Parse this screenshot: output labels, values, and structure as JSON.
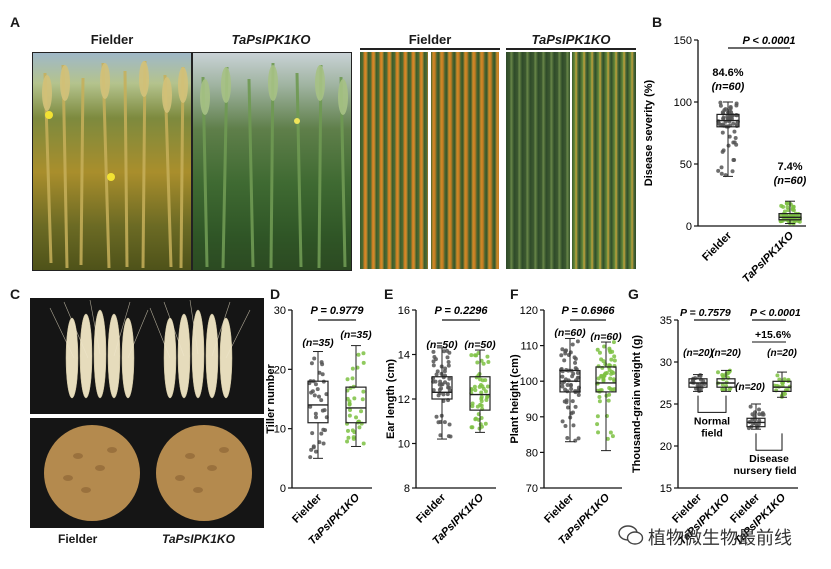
{
  "panel_letters": [
    "A",
    "B",
    "C",
    "D",
    "E",
    "F",
    "G"
  ],
  "panel_a": {
    "headers": [
      "Fielder",
      "TaPsIPK1KO",
      "Fielder",
      "TaPsIPK1KO"
    ]
  },
  "panel_c": {
    "labels": [
      "Fielder",
      "TaPsIPK1KO"
    ]
  },
  "watermark": "植物微生物最前线",
  "colors": {
    "fielder": "#555555",
    "ko": "#7dc142",
    "box": "#333333"
  },
  "chart_data": [
    {
      "id": "B",
      "type": "box",
      "ylabel": "Disease severity (%)",
      "ylim": [
        0,
        150
      ],
      "yticks": [
        0,
        50,
        100,
        150
      ],
      "categories": [
        "Fielder",
        "TaPsIPK1KO"
      ],
      "pvalue": "P < 0.0001",
      "annotations": [
        {
          "category": "Fielder",
          "text": "84.6%",
          "n": "(n=60)"
        },
        {
          "category": "TaPsIPK1KO",
          "text": "7.4%",
          "n": "(n=60)"
        }
      ],
      "boxes": [
        {
          "min": 40,
          "q1": 80,
          "median": 85,
          "q3": 90,
          "max": 100
        },
        {
          "min": 2,
          "q1": 5,
          "median": 7,
          "q3": 10,
          "max": 20
        }
      ]
    },
    {
      "id": "D",
      "type": "box",
      "ylabel": "Tiller number",
      "ylim": [
        0,
        30
      ],
      "yticks": [
        0,
        10,
        20,
        30
      ],
      "categories": [
        "Fielder",
        "TaPsIPK1KO"
      ],
      "pvalue": "P = 0.9779",
      "n_labels": [
        "(n=35)",
        "(n=35)"
      ],
      "boxes": [
        {
          "min": 5,
          "q1": 11,
          "median": 14,
          "q3": 18,
          "max": 23
        },
        {
          "min": 7,
          "q1": 11,
          "median": 13.5,
          "q3": 17,
          "max": 24
        }
      ]
    },
    {
      "id": "E",
      "type": "box",
      "ylabel": "Ear length (cm)",
      "ylim": [
        8,
        16
      ],
      "yticks": [
        8,
        10,
        12,
        14,
        16
      ],
      "categories": [
        "Fielder",
        "TaPsIPK1KO"
      ],
      "pvalue": "P = 0.2296",
      "n_labels": [
        "(n=50)",
        "(n=50)"
      ],
      "boxes": [
        {
          "min": 10.2,
          "q1": 12,
          "median": 12.3,
          "q3": 13,
          "max": 14.3
        },
        {
          "min": 10.5,
          "q1": 11.5,
          "median": 12.2,
          "q3": 13,
          "max": 14.2
        }
      ]
    },
    {
      "id": "F",
      "type": "box",
      "ylabel": "Plant height (cm)",
      "ylim": [
        70,
        120
      ],
      "yticks": [
        70,
        80,
        90,
        100,
        110,
        120
      ],
      "categories": [
        "Fielder",
        "TaPsIPK1KO"
      ],
      "pvalue": "P = 0.6966",
      "n_labels": [
        "(n=60)",
        "(n=60)"
      ],
      "boxes": [
        {
          "min": 83,
          "q1": 97,
          "median": 100,
          "q3": 103,
          "max": 112
        },
        {
          "min": 80.5,
          "q1": 97,
          "median": 99.5,
          "q3": 104,
          "max": 111
        }
      ]
    },
    {
      "id": "G",
      "type": "box",
      "ylabel": "Thousand-grain weight (g)",
      "ylim": [
        15,
        35
      ],
      "yticks": [
        15,
        20,
        25,
        30,
        35
      ],
      "categories": [
        "Fielder",
        "TaPsIPK1KO",
        "Fielder",
        "TaPsIPK1KO"
      ],
      "pvalues": [
        "P = 0.7579",
        "P < 0.0001"
      ],
      "pct_change": "+15.6%",
      "n_labels": [
        "(n=20)",
        "(n=20)",
        "(n=20)",
        "(n=20)"
      ],
      "group_labels": [
        "Normal\nfield",
        "Disease\nnursery field"
      ],
      "boxes": [
        {
          "min": 26.5,
          "q1": 27,
          "median": 27.5,
          "q3": 28,
          "max": 28.5
        },
        {
          "min": 26.5,
          "q1": 27,
          "median": 27.5,
          "q3": 28,
          "max": 29
        },
        {
          "min": 22,
          "q1": 22.3,
          "median": 22.8,
          "q3": 23.3,
          "max": 25
        },
        {
          "min": 25.8,
          "q1": 26.5,
          "median": 27,
          "q3": 27.7,
          "max": 28.8
        }
      ]
    }
  ]
}
